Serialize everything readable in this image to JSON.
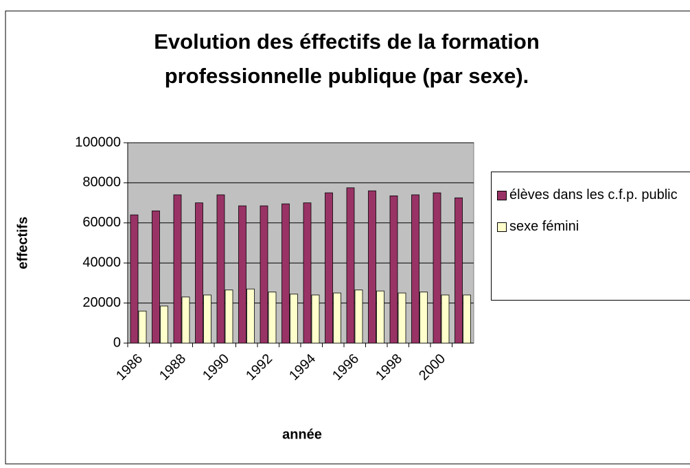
{
  "chart_data": {
    "type": "bar",
    "title": [
      "Evolution des éffectifs de la formation",
      "professionnelle publique (par sexe)."
    ],
    "x_label": "année",
    "y_label": "effectifs",
    "categories": [
      "1986",
      null,
      "1988",
      null,
      "1990",
      null,
      "1992",
      null,
      "1994",
      null,
      "1996",
      null,
      "1998",
      null,
      "2000",
      null
    ],
    "series": [
      {
        "name": "élèves dans les c.f.p. public",
        "color": "#993366",
        "values": [
          64000,
          66000,
          74000,
          70000,
          74000,
          68500,
          68500,
          69500,
          70000,
          75000,
          77500,
          76000,
          73500,
          74000,
          75000,
          72500
        ]
      },
      {
        "name": "sexe fémini",
        "color": "#ffffcc",
        "values": [
          16000,
          18500,
          23000,
          24000,
          26500,
          27000,
          25500,
          24500,
          24000,
          25000,
          26500,
          26000,
          25000,
          25500,
          24000,
          24000
        ]
      }
    ],
    "ylim": [
      0,
      100000
    ],
    "yticks": [
      0,
      20000,
      40000,
      60000,
      80000,
      100000
    ],
    "grid": true,
    "legend": "right"
  }
}
